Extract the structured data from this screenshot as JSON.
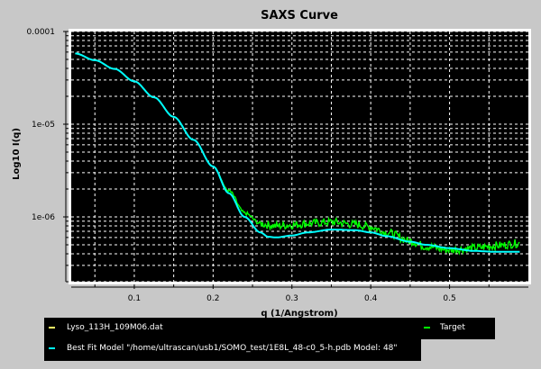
{
  "window": {
    "background": "#c8c8c8"
  },
  "chart_data": {
    "type": "line",
    "title": "SAXS Curve",
    "xlabel": "q (1/Angstrom)",
    "ylabel": "Log10 I(q)",
    "x_scale": "linear",
    "y_scale": "log",
    "xlim": [
      0.02,
      0.6
    ],
    "ylim": [
      2e-07,
      0.0001
    ],
    "x_ticks": [
      {
        "value": 0.1,
        "label": "0.1"
      },
      {
        "value": 0.2,
        "label": "0.2"
      },
      {
        "value": 0.3,
        "label": "0.3"
      },
      {
        "value": 0.4,
        "label": "0.4"
      },
      {
        "value": 0.5,
        "label": "0.5"
      }
    ],
    "y_ticks": [
      {
        "value": 0.0001,
        "label": "0.0001"
      },
      {
        "value": 1e-05,
        "label": "1e-05"
      },
      {
        "value": 1e-06,
        "label": "1e-06"
      }
    ],
    "grid": true,
    "plot_background": "#000000",
    "grid_color": "#ffffff",
    "series": [
      {
        "name": "Target",
        "color": "#00ff00",
        "style": "noisy",
        "x": [
          0.025,
          0.05,
          0.075,
          0.1,
          0.125,
          0.15,
          0.175,
          0.2,
          0.22,
          0.24,
          0.26,
          0.27,
          0.28,
          0.3,
          0.32,
          0.35,
          0.38,
          0.4,
          0.42,
          0.45,
          0.47,
          0.5,
          0.53,
          0.56,
          0.59
        ],
        "y": [
          5.8e-05,
          4.9e-05,
          3.95e-05,
          2.9e-05,
          1.95e-05,
          1.2e-05,
          6.8e-06,
          3.5e-06,
          1.9e-06,
          1.1e-06,
          8.5e-07,
          8.2e-07,
          8e-07,
          8.2e-07,
          8.5e-07,
          8.8e-07,
          8.3e-07,
          7.8e-07,
          6.8e-07,
          5.5e-07,
          4.8e-07,
          4.4e-07,
          4.6e-07,
          4.9e-07,
          5.2e-07
        ]
      },
      {
        "name": "Best Fit Model \"/home/ultrascan/usb1/SOMO_test/1E8L_48-c0_5-h.pdb Model: 48\"",
        "color": "#00ffff",
        "style": "smooth",
        "x": [
          0.025,
          0.05,
          0.075,
          0.1,
          0.125,
          0.15,
          0.175,
          0.2,
          0.22,
          0.24,
          0.26,
          0.27,
          0.28,
          0.3,
          0.32,
          0.35,
          0.38,
          0.4,
          0.42,
          0.45,
          0.47,
          0.5,
          0.53,
          0.56,
          0.59
        ],
        "y": [
          5.8e-05,
          4.9e-05,
          3.95e-05,
          2.9e-05,
          1.95e-05,
          1.2e-05,
          6.8e-06,
          3.5e-06,
          1.8e-06,
          1e-06,
          6.8e-07,
          6.1e-07,
          6e-07,
          6.3e-07,
          6.8e-07,
          7.3e-07,
          7.2e-07,
          6.8e-07,
          6.2e-07,
          5.4e-07,
          5e-07,
          4.6e-07,
          4.3e-07,
          4.2e-07,
          4.2e-07
        ]
      }
    ]
  },
  "legend": {
    "entries": [
      {
        "label": "Lyso_113H_109M06.dat",
        "color": "#ffff66"
      },
      {
        "label": "Target",
        "color": "#00ff00"
      },
      {
        "label": "Best Fit Model \"/home/ultrascan/usb1/SOMO_test/1E8L_48-c0_5-h.pdb Model: 48\"",
        "color": "#00ffff"
      }
    ]
  }
}
